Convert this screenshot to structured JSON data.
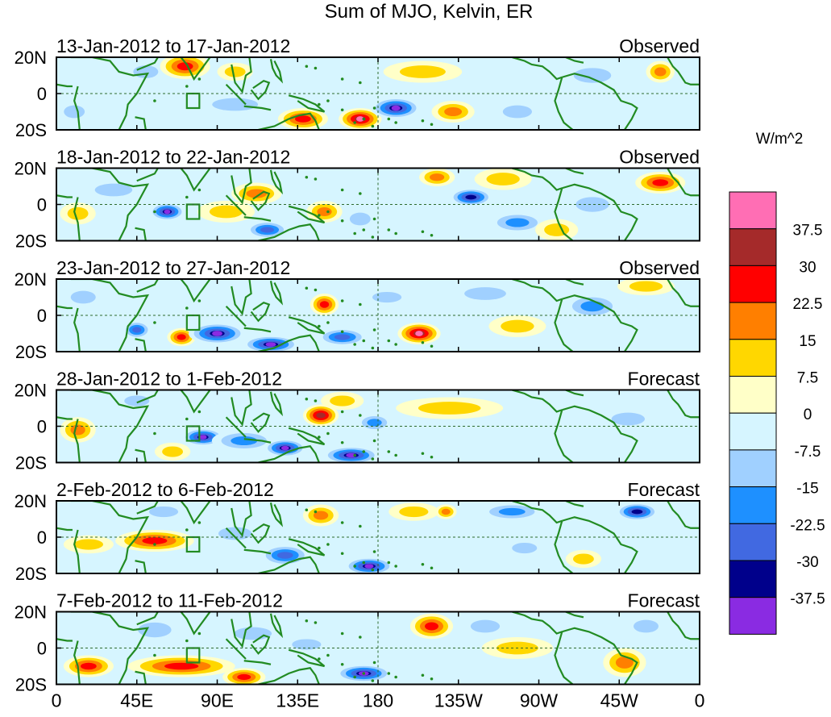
{
  "title": "Sum of MJO, Kelvin, ER",
  "colorbar": {
    "unit": "W/m^2",
    "labels": [
      "37.5",
      "30",
      "22.5",
      "15",
      "7.5",
      "0",
      "-7.5",
      "-15",
      "-22.5",
      "-30",
      "-37.5"
    ],
    "colors": [
      "#ff6eb4",
      "#a52a2a",
      "#ff0000",
      "#ff7f00",
      "#ffd700",
      "#ffffc8",
      "#d6f5ff",
      "#a0d0ff",
      "#1e90ff",
      "#4169e1",
      "#00008b",
      "#8a2be2"
    ]
  },
  "x_ticks": [
    "0",
    "45E",
    "90E",
    "135E",
    "180",
    "135W",
    "90W",
    "45W",
    "0"
  ],
  "y_ticks": [
    "20N",
    "0",
    "20S"
  ],
  "chart_data": {
    "type": "heatmap",
    "title": "Sum of MJO, Kelvin, ER",
    "xlabel": "",
    "ylabel": "",
    "x_range": [
      0,
      360
    ],
    "y_range": [
      -20,
      20
    ],
    "units": "W/m^2",
    "levels": [
      -37.5,
      -30,
      -22.5,
      -15,
      -7.5,
      0,
      7.5,
      15,
      22.5,
      30,
      37.5
    ],
    "panels": [
      {
        "period": "13-Jan-2012 to 17-Jan-2012",
        "status": "Observed",
        "blobs": [
          {
            "lon": 10,
            "lat": -10,
            "value": -15,
            "rx": 10,
            "ry": 6
          },
          {
            "lon": 50,
            "lat": 12,
            "value": -12,
            "rx": 12,
            "ry": 6
          },
          {
            "lon": 72,
            "lat": 15,
            "value": 25,
            "rx": 14,
            "ry": 7
          },
          {
            "lon": 100,
            "lat": -6,
            "value": -15,
            "rx": 22,
            "ry": 6
          },
          {
            "lon": 100,
            "lat": 12,
            "value": 15,
            "rx": 10,
            "ry": 5
          },
          {
            "lon": 138,
            "lat": -14,
            "value": 28,
            "rx": 14,
            "ry": 6
          },
          {
            "lon": 170,
            "lat": -14,
            "value": 38,
            "rx": 12,
            "ry": 6
          },
          {
            "lon": 190,
            "lat": -8,
            "value": -38,
            "rx": 14,
            "ry": 6
          },
          {
            "lon": 205,
            "lat": 12,
            "value": 14,
            "rx": 22,
            "ry": 6
          },
          {
            "lon": 222,
            "lat": -10,
            "value": 22,
            "rx": 12,
            "ry": 6
          },
          {
            "lon": 258,
            "lat": -10,
            "value": -12,
            "rx": 14,
            "ry": 6
          },
          {
            "lon": 300,
            "lat": 10,
            "value": -10,
            "rx": 18,
            "ry": 7
          },
          {
            "lon": 338,
            "lat": 12,
            "value": 20,
            "rx": 8,
            "ry": 6
          }
        ]
      },
      {
        "period": "18-Jan-2012 to 22-Jan-2012",
        "status": "Observed",
        "blobs": [
          {
            "lon": 12,
            "lat": -5,
            "value": 15,
            "rx": 10,
            "ry": 6
          },
          {
            "lon": 32,
            "lat": 8,
            "value": -15,
            "rx": 18,
            "ry": 6
          },
          {
            "lon": 62,
            "lat": -4,
            "value": -38,
            "rx": 10,
            "ry": 5
          },
          {
            "lon": 95,
            "lat": -4,
            "value": 12,
            "rx": 16,
            "ry": 6
          },
          {
            "lon": 112,
            "lat": 6,
            "value": 22,
            "rx": 14,
            "ry": 6
          },
          {
            "lon": 118,
            "lat": -14,
            "value": -30,
            "rx": 12,
            "ry": 5
          },
          {
            "lon": 150,
            "lat": -4,
            "value": 20,
            "rx": 10,
            "ry": 6
          },
          {
            "lon": 170,
            "lat": -8,
            "value": -15,
            "rx": 10,
            "ry": 6
          },
          {
            "lon": 213,
            "lat": 15,
            "value": 20,
            "rx": 10,
            "ry": 5
          },
          {
            "lon": 232,
            "lat": 4,
            "value": -35,
            "rx": 12,
            "ry": 5
          },
          {
            "lon": 250,
            "lat": 14,
            "value": 14,
            "rx": 16,
            "ry": 6
          },
          {
            "lon": 258,
            "lat": -10,
            "value": -18,
            "rx": 16,
            "ry": 6
          },
          {
            "lon": 280,
            "lat": -14,
            "value": 15,
            "rx": 12,
            "ry": 6
          },
          {
            "lon": 300,
            "lat": 0,
            "value": -15,
            "rx": 16,
            "ry": 7
          },
          {
            "lon": 338,
            "lat": 12,
            "value": 30,
            "rx": 14,
            "ry": 6
          }
        ]
      },
      {
        "period": "23-Jan-2012 to 27-Jan-2012",
        "status": "Observed",
        "blobs": [
          {
            "lon": 15,
            "lat": 10,
            "value": -12,
            "rx": 12,
            "ry": 6
          },
          {
            "lon": 45,
            "lat": -8,
            "value": -30,
            "rx": 8,
            "ry": 5
          },
          {
            "lon": 70,
            "lat": -12,
            "value": 28,
            "rx": 8,
            "ry": 5
          },
          {
            "lon": 90,
            "lat": -10,
            "value": -38,
            "rx": 16,
            "ry": 6
          },
          {
            "lon": 120,
            "lat": -16,
            "value": -38,
            "rx": 16,
            "ry": 5
          },
          {
            "lon": 150,
            "lat": 6,
            "value": 28,
            "rx": 8,
            "ry": 6
          },
          {
            "lon": 160,
            "lat": -12,
            "value": -30,
            "rx": 14,
            "ry": 5
          },
          {
            "lon": 185,
            "lat": 10,
            "value": -10,
            "rx": 14,
            "ry": 5
          },
          {
            "lon": 203,
            "lat": -10,
            "value": 38,
            "rx": 12,
            "ry": 6
          },
          {
            "lon": 240,
            "lat": 12,
            "value": -8,
            "rx": 20,
            "ry": 6
          },
          {
            "lon": 258,
            "lat": -6,
            "value": 12,
            "rx": 16,
            "ry": 6
          },
          {
            "lon": 300,
            "lat": 5,
            "value": -18,
            "rx": 16,
            "ry": 7
          },
          {
            "lon": 330,
            "lat": 16,
            "value": 12,
            "rx": 16,
            "ry": 5
          }
        ]
      },
      {
        "period": "28-Jan-2012 to 1-Feb-2012",
        "status": "Forecast",
        "blobs": [
          {
            "lon": 12,
            "lat": -2,
            "value": 20,
            "rx": 10,
            "ry": 7
          },
          {
            "lon": 45,
            "lat": 14,
            "value": -12,
            "rx": 12,
            "ry": 5
          },
          {
            "lon": 65,
            "lat": -14,
            "value": 15,
            "rx": 10,
            "ry": 5
          },
          {
            "lon": 82,
            "lat": -6,
            "value": -38,
            "rx": 12,
            "ry": 5
          },
          {
            "lon": 105,
            "lat": -8,
            "value": -22,
            "rx": 18,
            "ry": 6
          },
          {
            "lon": 128,
            "lat": -12,
            "value": -38,
            "rx": 12,
            "ry": 5
          },
          {
            "lon": 148,
            "lat": 6,
            "value": 35,
            "rx": 10,
            "ry": 6
          },
          {
            "lon": 165,
            "lat": -16,
            "value": -38,
            "rx": 16,
            "ry": 5
          },
          {
            "lon": 160,
            "lat": 14,
            "value": 12,
            "rx": 12,
            "ry": 5
          },
          {
            "lon": 178,
            "lat": 2,
            "value": -20,
            "rx": 10,
            "ry": 5
          },
          {
            "lon": 220,
            "lat": 10,
            "value": 9,
            "rx": 30,
            "ry": 6
          },
          {
            "lon": 320,
            "lat": 4,
            "value": -10,
            "rx": 16,
            "ry": 6
          }
        ]
      },
      {
        "period": "2-Feb-2012 to 6-Feb-2012",
        "status": "Forecast",
        "blobs": [
          {
            "lon": 18,
            "lat": -4,
            "value": 15,
            "rx": 14,
            "ry": 5
          },
          {
            "lon": 55,
            "lat": -2,
            "value": 25,
            "rx": 22,
            "ry": 6
          },
          {
            "lon": 60,
            "lat": 14,
            "value": -12,
            "rx": 14,
            "ry": 5
          },
          {
            "lon": 100,
            "lat": 2,
            "value": -10,
            "rx": 16,
            "ry": 6
          },
          {
            "lon": 128,
            "lat": -10,
            "value": -30,
            "rx": 14,
            "ry": 6
          },
          {
            "lon": 148,
            "lat": 12,
            "value": 20,
            "rx": 10,
            "ry": 6
          },
          {
            "lon": 175,
            "lat": -16,
            "value": -38,
            "rx": 14,
            "ry": 5
          },
          {
            "lon": 200,
            "lat": 14,
            "value": 12,
            "rx": 14,
            "ry": 5
          },
          {
            "lon": 218,
            "lat": 14,
            "value": 20,
            "rx": 6,
            "ry": 4
          },
          {
            "lon": 255,
            "lat": 14,
            "value": -22,
            "rx": 18,
            "ry": 5
          },
          {
            "lon": 262,
            "lat": -6,
            "value": -12,
            "rx": 12,
            "ry": 5
          },
          {
            "lon": 295,
            "lat": -12,
            "value": 12,
            "rx": 10,
            "ry": 5
          },
          {
            "lon": 325,
            "lat": 14,
            "value": -35,
            "rx": 12,
            "ry": 5
          }
        ]
      },
      {
        "period": "7-Feb-2012 to 11-Feb-2012",
        "status": "Forecast",
        "blobs": [
          {
            "lon": 18,
            "lat": -10,
            "value": 25,
            "rx": 14,
            "ry": 6
          },
          {
            "lon": 70,
            "lat": -10,
            "value": 25,
            "rx": 30,
            "ry": 6
          },
          {
            "lon": 55,
            "lat": 10,
            "value": -15,
            "rx": 16,
            "ry": 7
          },
          {
            "lon": 105,
            "lat": -16,
            "value": 25,
            "rx": 12,
            "ry": 5
          },
          {
            "lon": 110,
            "lat": 8,
            "value": -12,
            "rx": 18,
            "ry": 6
          },
          {
            "lon": 140,
            "lat": 2,
            "value": -10,
            "rx": 14,
            "ry": 5
          },
          {
            "lon": 172,
            "lat": -14,
            "value": -38,
            "rx": 16,
            "ry": 5
          },
          {
            "lon": 210,
            "lat": 12,
            "value": 28,
            "rx": 12,
            "ry": 7
          },
          {
            "lon": 240,
            "lat": 12,
            "value": -15,
            "rx": 14,
            "ry": 6
          },
          {
            "lon": 258,
            "lat": 0,
            "value": 10,
            "rx": 20,
            "ry": 6
          },
          {
            "lon": 318,
            "lat": -8,
            "value": 22,
            "rx": 12,
            "ry": 8
          },
          {
            "lon": 330,
            "lat": 12,
            "value": -15,
            "rx": 12,
            "ry": 6
          }
        ]
      }
    ]
  }
}
